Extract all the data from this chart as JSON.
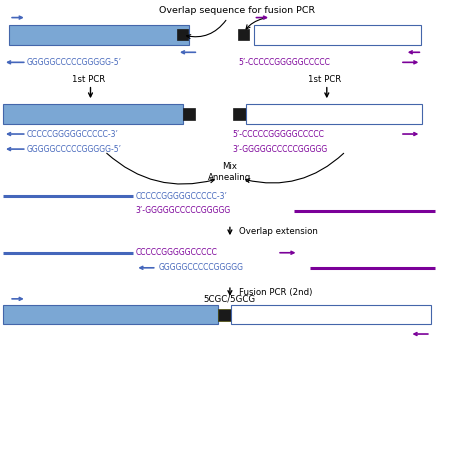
{
  "title": "Overlap sequence for fusion PCR",
  "blue_fill": "#7BA7D4",
  "blue_edge": "#4466AA",
  "blue_arrow": "#4466BB",
  "purple_arrow": "#7B0099",
  "black_sq": "#1a1a1a",
  "bg": "#ffffff",
  "text_color": "#000000",
  "seq_left_1": "GGGGGCCCCCGGGGG-5’",
  "seq_left_2a": "CCCCCGGGGGCCCCC-3’",
  "seq_left_2b": "GGGGGCCCCCGGGGG-5’",
  "seq_right_1": "5’-CCCCCGGGGGCCCCC",
  "seq_right_2a": "5’-CCCCCGGGGGCCCCC",
  "seq_right_2b": "3’-GGGGGCCCCCGGGGG",
  "seq_ann_top": "CCCCCGGGGGCCCCC-3’",
  "seq_ann_bot": "3’-GGGGGCCCCCGGGGG",
  "seq_ext_top": "CCCCCGGGGGCCCCC",
  "seq_ext_bot": "GGGGGCCCCCGGGGG",
  "label_1st_pcr": "1st PCR",
  "label_mix": "Mix\nAnnealing",
  "label_overlap": "Overlap extension",
  "label_fusion": "Fusion PCR (2nd)",
  "label_product": "5CGC/5GCG",
  "fs_seq": 5.5,
  "fs_label": 6.2,
  "fs_title": 6.8
}
